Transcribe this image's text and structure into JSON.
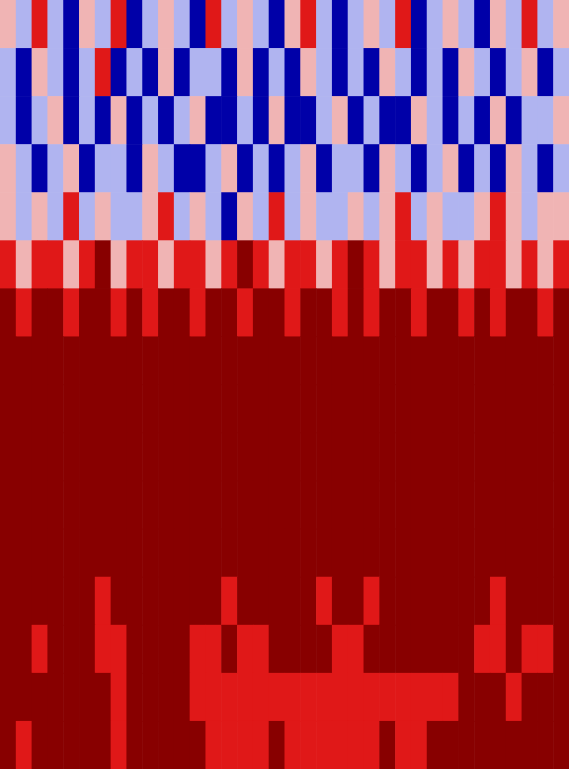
{
  "chart_data": {
    "type": "heatmap",
    "tick_labels": false,
    "colors": [
      "#0000a8",
      "#b0b4f0",
      "#f0b4b4",
      "#e01818",
      "#880000"
    ],
    "cells": [
      [
        2,
        1,
        3,
        1,
        0,
        2,
        1,
        3,
        0,
        1,
        2,
        1,
        0,
        3,
        1,
        2,
        1,
        0,
        2,
        3,
        1,
        0,
        1,
        2,
        1,
        3,
        0,
        1,
        2,
        1,
        0,
        2,
        1,
        3,
        1,
        2
      ],
      [
        1,
        0,
        2,
        1,
        0,
        1,
        3,
        0,
        1,
        0,
        2,
        0,
        1,
        1,
        0,
        2,
        0,
        1,
        0,
        2,
        1,
        0,
        1,
        0,
        2,
        1,
        0,
        1,
        0,
        2,
        1,
        0,
        1,
        2,
        0,
        1
      ],
      [
        1,
        0,
        1,
        2,
        0,
        1,
        0,
        2,
        0,
        1,
        0,
        1,
        2,
        0,
        0,
        1,
        0,
        2,
        0,
        0,
        1,
        2,
        0,
        1,
        0,
        0,
        2,
        1,
        0,
        1,
        0,
        2,
        0,
        1,
        1,
        2
      ],
      [
        2,
        1,
        0,
        1,
        2,
        0,
        1,
        1,
        0,
        2,
        1,
        0,
        0,
        1,
        2,
        0,
        1,
        0,
        1,
        2,
        0,
        1,
        1,
        0,
        2,
        1,
        0,
        1,
        2,
        0,
        1,
        0,
        2,
        1,
        0,
        1
      ],
      [
        2,
        1,
        2,
        1,
        3,
        1,
        2,
        1,
        1,
        2,
        3,
        1,
        2,
        1,
        0,
        2,
        1,
        3,
        1,
        2,
        1,
        1,
        2,
        1,
        2,
        3,
        1,
        2,
        1,
        1,
        2,
        3,
        2,
        1,
        2,
        2
      ],
      [
        3,
        2,
        3,
        3,
        2,
        3,
        4,
        2,
        3,
        3,
        2,
        3,
        3,
        2,
        3,
        4,
        3,
        2,
        3,
        3,
        2,
        3,
        4,
        3,
        2,
        3,
        3,
        2,
        3,
        2,
        3,
        3,
        2,
        3,
        2,
        3
      ],
      [
        4,
        3,
        4,
        4,
        3,
        4,
        4,
        3,
        4,
        3,
        4,
        4,
        3,
        4,
        4,
        3,
        4,
        4,
        3,
        4,
        4,
        3,
        4,
        3,
        4,
        4,
        3,
        4,
        4,
        3,
        4,
        3,
        4,
        4,
        3,
        4
      ],
      [
        4,
        4,
        4,
        4,
        4,
        4,
        4,
        4,
        4,
        4,
        4,
        4,
        4,
        4,
        4,
        4,
        4,
        4,
        4,
        4,
        4,
        4,
        4,
        4,
        4,
        4,
        4,
        4,
        4,
        4,
        4,
        4,
        4,
        4,
        4,
        4
      ],
      [
        4,
        4,
        4,
        4,
        4,
        4,
        4,
        4,
        4,
        4,
        4,
        4,
        4,
        4,
        4,
        4,
        4,
        4,
        4,
        4,
        4,
        4,
        4,
        4,
        4,
        4,
        4,
        4,
        4,
        4,
        4,
        4,
        4,
        4,
        4,
        4
      ],
      [
        4,
        4,
        4,
        4,
        4,
        4,
        4,
        4,
        4,
        4,
        4,
        4,
        4,
        4,
        4,
        4,
        4,
        4,
        4,
        4,
        4,
        4,
        4,
        4,
        4,
        4,
        4,
        4,
        4,
        4,
        4,
        4,
        4,
        4,
        4,
        4
      ],
      [
        4,
        4,
        4,
        4,
        4,
        4,
        4,
        4,
        4,
        4,
        4,
        4,
        4,
        4,
        4,
        4,
        4,
        4,
        4,
        4,
        4,
        4,
        4,
        4,
        4,
        4,
        4,
        4,
        4,
        4,
        4,
        4,
        4,
        4,
        4,
        4
      ],
      [
        4,
        4,
        4,
        4,
        4,
        4,
        4,
        4,
        4,
        4,
        4,
        4,
        4,
        4,
        4,
        4,
        4,
        4,
        4,
        4,
        4,
        4,
        4,
        4,
        4,
        4,
        4,
        4,
        4,
        4,
        4,
        4,
        4,
        4,
        4,
        4
      ],
      [
        4,
        4,
        4,
        4,
        4,
        4,
        3,
        4,
        4,
        4,
        4,
        4,
        4,
        4,
        3,
        4,
        4,
        4,
        4,
        4,
        3,
        4,
        4,
        3,
        4,
        4,
        4,
        4,
        4,
        4,
        4,
        3,
        4,
        4,
        4,
        4
      ],
      [
        4,
        4,
        3,
        4,
        4,
        4,
        3,
        3,
        4,
        4,
        4,
        4,
        3,
        3,
        4,
        3,
        3,
        4,
        4,
        4,
        4,
        3,
        3,
        4,
        4,
        4,
        4,
        4,
        4,
        4,
        3,
        3,
        4,
        3,
        3,
        4
      ],
      [
        4,
        4,
        4,
        4,
        4,
        4,
        4,
        3,
        4,
        4,
        4,
        4,
        3,
        3,
        3,
        3,
        3,
        3,
        3,
        3,
        3,
        3,
        3,
        3,
        3,
        3,
        3,
        3,
        3,
        4,
        4,
        4,
        3,
        4,
        4,
        4
      ],
      [
        4,
        3,
        4,
        4,
        4,
        4,
        4,
        3,
        4,
        4,
        4,
        4,
        4,
        3,
        3,
        3,
        3,
        4,
        3,
        3,
        3,
        3,
        3,
        3,
        4,
        3,
        3,
        4,
        4,
        4,
        4,
        4,
        4,
        4,
        4,
        4
      ]
    ]
  }
}
